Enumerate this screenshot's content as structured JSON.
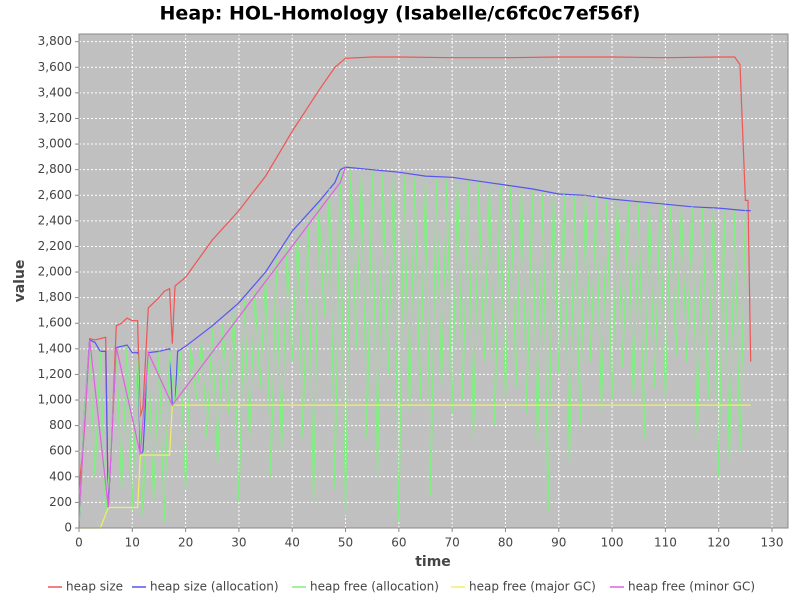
{
  "chart_data": {
    "type": "line",
    "title": "Heap: HOL-Homology (Isabelle/c6fc0c7ef56f)",
    "xlabel": "time",
    "ylabel": "value",
    "xlim": [
      0,
      133
    ],
    "ylim": [
      0,
      3860
    ],
    "xticks": [
      0,
      10,
      20,
      30,
      40,
      50,
      60,
      70,
      80,
      90,
      100,
      110,
      120,
      130
    ],
    "yticks": [
      0,
      200,
      400,
      600,
      800,
      {
        "value": 1000,
        "label": "1,000"
      },
      {
        "value": 1200,
        "label": "1,200"
      },
      {
        "value": 1400,
        "label": "1,400"
      },
      {
        "value": 1600,
        "label": "1,600"
      },
      {
        "value": 1800,
        "label": "1,800"
      },
      {
        "value": 2000,
        "label": "2,000"
      },
      {
        "value": 2200,
        "label": "2,200"
      },
      {
        "value": 2400,
        "label": "2,400"
      },
      {
        "value": 2600,
        "label": "2,600"
      },
      {
        "value": 2800,
        "label": "2,800"
      },
      {
        "value": 3000,
        "label": "3,000"
      },
      {
        "value": 3200,
        "label": "3,200"
      },
      {
        "value": 3400,
        "label": "3,400"
      },
      {
        "value": 3600,
        "label": "3,600"
      },
      {
        "value": 3800,
        "label": "3,800"
      }
    ],
    "grid": true,
    "legend": "bottom",
    "series": [
      {
        "name": "heap size",
        "color": "#f05555",
        "x": [
          0,
          1,
          2,
          3,
          5,
          5.5,
          6,
          7,
          8,
          9,
          10,
          11,
          11.5,
          12,
          13,
          14,
          15,
          16,
          17,
          17.5,
          18,
          20,
          25,
          30,
          35,
          40,
          45,
          48,
          50,
          55,
          60,
          70,
          80,
          90,
          100,
          110,
          120,
          123,
          124,
          125,
          125.5,
          126
        ],
        "values": [
          300,
          750,
          1480,
          1470,
          1490,
          160,
          600,
          1580,
          1600,
          1640,
          1620,
          1620,
          870,
          950,
          1720,
          1760,
          1800,
          1850,
          1870,
          1440,
          1890,
          1960,
          2250,
          2480,
          2750,
          3100,
          3420,
          3600,
          3670,
          3680,
          3680,
          3675,
          3675,
          3680,
          3680,
          3675,
          3680,
          3680,
          3620,
          2560,
          2560,
          1300
        ]
      },
      {
        "name": "heap size (allocation)",
        "color": "#5555f0",
        "x": [
          0,
          1,
          2,
          3,
          4,
          5,
          5.5,
          6,
          7,
          8,
          9,
          10,
          11,
          11.5,
          12,
          13,
          15,
          16,
          17,
          17.5,
          18,
          18.5,
          20,
          25,
          30,
          35,
          40,
          45,
          48,
          49,
          50,
          55,
          60,
          65,
          70,
          75,
          80,
          85,
          90,
          95,
          100,
          105,
          110,
          115,
          120,
          125,
          126
        ],
        "values": [
          0,
          900,
          1470,
          1450,
          1380,
          1380,
          160,
          600,
          1410,
          1420,
          1430,
          1370,
          1370,
          570,
          600,
          1370,
          1380,
          1390,
          1400,
          960,
          960,
          1380,
          1420,
          1580,
          1760,
          2000,
          2320,
          2550,
          2700,
          2800,
          2820,
          2800,
          2780,
          2750,
          2740,
          2710,
          2680,
          2650,
          2610,
          2600,
          2570,
          2550,
          2530,
          2510,
          2500,
          2480,
          2480
        ]
      },
      {
        "name": "heap free (allocation)",
        "color": "#80ee80",
        "x": [
          0,
          1,
          2,
          3,
          4,
          5,
          6,
          7,
          8,
          9,
          10,
          11,
          12,
          13,
          14,
          15,
          16,
          17,
          18,
          19,
          20,
          21,
          22,
          23,
          24,
          25,
          26,
          27,
          28,
          29,
          30,
          31,
          32,
          33,
          34,
          35,
          36,
          37,
          38,
          39,
          40,
          41,
          42,
          43,
          44,
          45,
          46,
          47,
          48,
          49,
          50,
          51,
          52,
          53,
          54,
          55,
          56,
          57,
          58,
          59,
          60,
          61,
          62,
          63,
          64,
          65,
          66,
          67,
          68,
          69,
          70,
          71,
          72,
          73,
          74,
          75,
          76,
          77,
          78,
          79,
          80,
          81,
          82,
          83,
          84,
          85,
          86,
          87,
          88,
          89,
          90,
          91,
          92,
          93,
          94,
          95,
          96,
          97,
          98,
          99,
          100,
          101,
          102,
          103,
          104,
          105,
          106,
          107,
          108,
          109,
          110,
          111,
          112,
          113,
          114,
          115,
          116,
          117,
          118,
          119,
          120,
          121,
          122,
          123,
          124,
          125
        ],
        "values": [
          0,
          900,
          1450,
          400,
          1380,
          100,
          640,
          1400,
          300,
          1420,
          150,
          1360,
          100,
          1370,
          200,
          1380,
          50,
          1390,
          950,
          1380,
          300,
          1420,
          1000,
          1460,
          700,
          1560,
          500,
          1600,
          900,
          1700,
          200,
          1780,
          700,
          1850,
          1100,
          1980,
          400,
          2100,
          600,
          2200,
          1300,
          2330,
          700,
          2400,
          200,
          2530,
          1650,
          2650,
          300,
          2780,
          100,
          2800,
          1400,
          2780,
          700,
          2790,
          400,
          2770,
          1200,
          2760,
          50,
          2750,
          900,
          2740,
          1000,
          2730,
          250,
          2730,
          1100,
          2720,
          900,
          2720,
          1000,
          2710,
          700,
          2700,
          1300,
          2690,
          800,
          2680,
          1000,
          2670,
          1100,
          2650,
          900,
          2640,
          650,
          2620,
          130,
          2610,
          1200,
          2610,
          500,
          2600,
          800,
          2600,
          1300,
          2590,
          900,
          2570,
          1000,
          2560,
          1250,
          2550,
          1000,
          2540,
          700,
          2530,
          1100,
          2530,
          1000,
          2520,
          1350,
          2510,
          1300,
          2510,
          700,
          2500,
          1000,
          2500,
          400,
          2490,
          500,
          2480,
          600,
          2480
        ]
      },
      {
        "name": "heap free (major GC)",
        "color": "#f0f060",
        "x": [
          0,
          4,
          5.5,
          11,
          11.5,
          17,
          17.5,
          126
        ],
        "values": [
          0,
          0,
          160,
          160,
          570,
          570,
          960,
          960
        ]
      },
      {
        "name": "heap free (minor GC)",
        "color": "#e060e0",
        "x": [
          0,
          2,
          5.5,
          7,
          11.5,
          13,
          17.5,
          49,
          50
        ],
        "values": [
          100,
          1470,
          160,
          1410,
          580,
          1370,
          960,
          2700,
          2820
        ]
      }
    ]
  }
}
